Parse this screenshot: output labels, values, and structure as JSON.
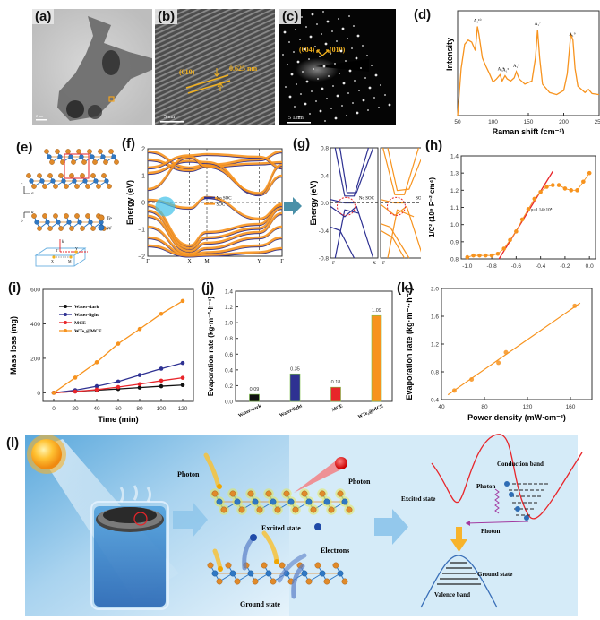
{
  "figure": {
    "panels": {
      "a": {
        "label": "(a)",
        "scale_bar": "2 μm"
      },
      "b": {
        "label": "(b)",
        "plane": "(010)",
        "spacing": "0.625 nm",
        "scale_bar": "5 nm"
      },
      "c": {
        "label": "(c)",
        "plane1": "(004)",
        "plane2": "(010)",
        "scale_bar": "5 1/nm"
      },
      "d": {
        "label": "(d)"
      },
      "e": {
        "label": "(e)",
        "legend_te": "Te",
        "legend_w": "W",
        "axis_c": "c",
        "axis_a": "a",
        "axis_b": "b",
        "bz_kz": "k",
        "bz_labels": [
          "Γ",
          "Y",
          "X",
          "M"
        ]
      },
      "f": {
        "label": "(f)"
      },
      "g": {
        "label": "(g)"
      },
      "h": {
        "label": "(h)"
      },
      "i": {
        "label": "(i)"
      },
      "j": {
        "label": "(j)"
      },
      "k": {
        "label": "(k)"
      },
      "l": {
        "label": "(l)",
        "photon_1": "Photon",
        "photon_2": "Photon",
        "excited_state": "Excited state",
        "electrons": "Electrons",
        "ground_state": "Ground state",
        "conduction_band": "Conduction band",
        "photon_3": "Photon",
        "excited_state_2": "Excited state",
        "photon_4": "Photon",
        "ground_state_2": "Ground state",
        "valence_band": "Valence band"
      }
    },
    "colors": {
      "orange": "#f7931e",
      "blue": "#2e3192",
      "red": "#e8252a",
      "black": "#111111",
      "sky": "#a8d4f0"
    }
  },
  "chart_data": [
    {
      "id": "d",
      "type": "line",
      "title": "",
      "xlabel": "Raman shift (cm⁻¹)",
      "ylabel": "Intensity",
      "xlim": [
        50,
        250
      ],
      "xticks": [
        50,
        100,
        150,
        200,
        250
      ],
      "x": [
        50,
        55,
        60,
        65,
        70,
        75,
        78,
        80,
        85,
        90,
        95,
        100,
        105,
        110,
        113,
        117,
        120,
        125,
        130,
        133,
        137,
        145,
        155,
        160,
        163,
        166,
        170,
        180,
        190,
        200,
        205,
        210,
        213,
        216,
        220,
        230,
        235,
        240,
        250
      ],
      "y": [
        0.0,
        0.45,
        0.68,
        0.72,
        0.7,
        0.62,
        0.85,
        0.78,
        0.55,
        0.47,
        0.4,
        0.32,
        0.35,
        0.39,
        0.33,
        0.38,
        0.35,
        0.33,
        0.36,
        0.42,
        0.35,
        0.3,
        0.33,
        0.55,
        0.82,
        0.55,
        0.3,
        0.22,
        0.2,
        0.24,
        0.4,
        0.78,
        0.72,
        0.45,
        0.28,
        0.22,
        0.25,
        0.21,
        0.2
      ],
      "peak_labels": [
        {
          "x": 78,
          "text": "A₁¹⁰"
        },
        {
          "x": 111,
          "text": "A₁⁴"
        },
        {
          "x": 118,
          "text": "A₁⁵"
        },
        {
          "x": 133,
          "text": "A₁⁶"
        },
        {
          "x": 163,
          "text": "A₁⁷"
        },
        {
          "x": 212,
          "text": "A₁⁹"
        }
      ],
      "color": "#f7931e"
    },
    {
      "id": "f",
      "type": "line",
      "title": "",
      "ylabel": "Energy (eV)",
      "ylim": [
        -2,
        2
      ],
      "yticks": [
        -2,
        -1,
        0,
        1,
        2
      ],
      "xtick_labels": [
        "Γ",
        "X",
        "M",
        "Y",
        "Γ"
      ],
      "legend": [
        {
          "name": "No SOC",
          "color": "#2e3192"
        },
        {
          "name": "SOC",
          "color": "#f7931e"
        }
      ],
      "legend_position": "center"
    },
    {
      "id": "g",
      "type": "line",
      "title": "",
      "ylabel": "Energy (eV)",
      "ylim": [
        -0.8,
        0.8
      ],
      "yticks": [
        -0.8,
        -0.4,
        0.0,
        0.4,
        0.8
      ],
      "subplots": [
        {
          "name": "No SOC",
          "xtick_labels": [
            "Γ",
            "X"
          ],
          "color": "#2e3192"
        },
        {
          "name": "SOC",
          "xtick_labels": [
            "Γ",
            "X"
          ],
          "color": "#f7931e"
        }
      ]
    },
    {
      "id": "h",
      "type": "scatter",
      "title": "",
      "xlabel": "",
      "ylabel": "1/C² (10⁹ F⁻² cm⁴)",
      "xlim": [
        -1.05,
        0.05
      ],
      "ylim": [
        0.8,
        1.4
      ],
      "xticks": [
        -1.0,
        -0.8,
        -0.6,
        -0.4,
        -0.2,
        0.0
      ],
      "yticks": [
        0.8,
        0.9,
        1.0,
        1.1,
        1.2,
        1.3,
        1.4
      ],
      "x": [
        -1.0,
        -0.95,
        -0.9,
        -0.85,
        -0.8,
        -0.75,
        -0.7,
        -0.65,
        -0.6,
        -0.55,
        -0.5,
        -0.45,
        -0.4,
        -0.35,
        -0.3,
        -0.25,
        -0.2,
        -0.15,
        -0.1,
        -0.05,
        0.0
      ],
      "y": [
        0.81,
        0.82,
        0.82,
        0.82,
        0.82,
        0.83,
        0.86,
        0.91,
        0.96,
        1.03,
        1.09,
        1.15,
        1.19,
        1.22,
        1.23,
        1.23,
        1.21,
        1.2,
        1.2,
        1.25,
        1.3
      ],
      "fit_line": {
        "x": [
          -0.74,
          -0.3
        ],
        "y": [
          0.8,
          1.31
        ]
      },
      "annotation": "ρ=1.14×10⁸",
      "color": "#f7931e",
      "fit_color": "#e8252a"
    },
    {
      "id": "i",
      "type": "line",
      "title": "",
      "xlabel": "Time (min)",
      "ylabel": "Mass loss (mg)",
      "xlim": [
        -10,
        130
      ],
      "ylim": [
        -50,
        600
      ],
      "xticks": [
        0,
        20,
        40,
        60,
        80,
        100,
        120
      ],
      "yticks": [
        0,
        200,
        400,
        600
      ],
      "x": [
        0,
        20,
        40,
        60,
        80,
        100,
        120
      ],
      "series": [
        {
          "name": "Water-dark",
          "color": "#111111",
          "values": [
            0,
            8,
            15,
            22,
            30,
            38,
            45
          ]
        },
        {
          "name": "Water-light",
          "color": "#2e3192",
          "values": [
            0,
            15,
            38,
            65,
            103,
            140,
            173
          ]
        },
        {
          "name": "MCE",
          "color": "#e8252a",
          "values": [
            0,
            7,
            18,
            33,
            50,
            70,
            87
          ]
        },
        {
          "name": "WTe₂@MCE",
          "color": "#f7931e",
          "values": [
            0,
            88,
            177,
            285,
            370,
            458,
            533
          ]
        }
      ],
      "legend_position": "top-left"
    },
    {
      "id": "j",
      "type": "bar",
      "title": "",
      "xlabel": "",
      "ylabel": "Evaporation rate (kg·m⁻²·h⁻¹)",
      "ylim": [
        0,
        1.4
      ],
      "yticks": [
        0.0,
        0.2,
        0.4,
        0.6,
        0.8,
        1.0,
        1.2,
        1.4
      ],
      "categories": [
        "Water-dark",
        "Water-light",
        "MCE",
        "WTe₂@MCE"
      ],
      "values": [
        0.09,
        0.35,
        0.18,
        1.09
      ],
      "data_labels": [
        "0.09",
        "0.35",
        "0.18",
        "1.09"
      ],
      "colors": [
        "#111111",
        "#2e3192",
        "#e8252a",
        "#f7931e"
      ]
    },
    {
      "id": "k",
      "type": "scatter",
      "title": "",
      "xlabel": "Power density (mW·cm⁻²)",
      "ylabel": "Evaporation rate (kg·m⁻²·h⁻¹)",
      "xlim": [
        40,
        180
      ],
      "ylim": [
        0.4,
        2.0
      ],
      "xticks": [
        40,
        80,
        120,
        160
      ],
      "yticks": [
        0.4,
        0.8,
        1.2,
        1.6,
        2.0
      ],
      "x": [
        52,
        68,
        93,
        100,
        164
      ],
      "y": [
        0.53,
        0.69,
        0.93,
        1.08,
        1.75
      ],
      "fit_line": {
        "x": [
          46,
          169
        ],
        "y": [
          0.47,
          1.79
        ]
      },
      "color": "#f7931e"
    }
  ]
}
